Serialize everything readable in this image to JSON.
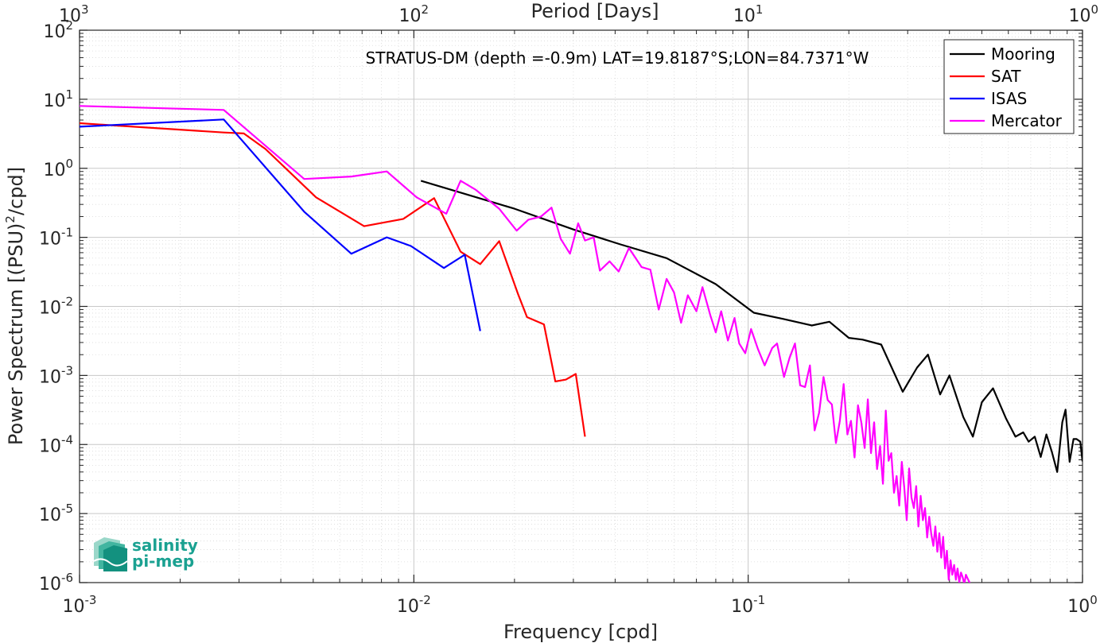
{
  "chart_data": {
    "type": "line",
    "title": "STRATUS-DM (depth =-0.9m) LAT=19.8187°S;LON=84.7371°W",
    "xlabel": "Frequency [cpd]",
    "ylabel": "Power Spectrum [(PSU)²/cpd]",
    "ylabel_parts": {
      "before": "Power Spectrum [(PSU)",
      "sup": "2",
      "after": "/cpd]"
    },
    "xlabel_top": "Period [Days]",
    "x_scale": "log",
    "y_scale": "log",
    "xlim": [
      0.001,
      1
    ],
    "ylim": [
      1e-06,
      100
    ],
    "grid": true,
    "legend_position": "top-right",
    "x_ticks": [
      {
        "value": 0.001,
        "base": "10",
        "exp": "-3"
      },
      {
        "value": 0.01,
        "base": "10",
        "exp": "-2"
      },
      {
        "value": 0.1,
        "base": "10",
        "exp": "-1"
      },
      {
        "value": 1,
        "base": "10",
        "exp": "0"
      }
    ],
    "y_ticks": [
      {
        "value": 100,
        "base": "10",
        "exp": "2"
      },
      {
        "value": 10,
        "base": "10",
        "exp": "1"
      },
      {
        "value": 1,
        "base": "10",
        "exp": "0"
      },
      {
        "value": 0.1,
        "base": "10",
        "exp": "-1"
      },
      {
        "value": 0.01,
        "base": "10",
        "exp": "-2"
      },
      {
        "value": 0.001,
        "base": "10",
        "exp": "-3"
      },
      {
        "value": 0.0001,
        "base": "10",
        "exp": "-4"
      },
      {
        "value": 1e-05,
        "base": "10",
        "exp": "-5"
      },
      {
        "value": 1e-06,
        "base": "10",
        "exp": "-6"
      }
    ],
    "top_ticks": [
      {
        "period": 1000,
        "base": "10",
        "exp": "3"
      },
      {
        "period": 100,
        "base": "10",
        "exp": "2"
      },
      {
        "period": 10,
        "base": "10",
        "exp": "1"
      },
      {
        "period": 1,
        "base": "10",
        "exp": "0"
      }
    ],
    "series": [
      {
        "name": "Mooring",
        "color": "#000000",
        "points": [
          [
            0.0105,
            0.66
          ],
          [
            0.02,
            0.26
          ],
          [
            0.03,
            0.13
          ],
          [
            0.0415,
            0.079
          ],
          [
            0.057,
            0.05
          ],
          [
            0.08,
            0.021
          ],
          [
            0.104,
            0.0081
          ],
          [
            0.127,
            0.0066
          ],
          [
            0.155,
            0.0053
          ],
          [
            0.175,
            0.006
          ],
          [
            0.2,
            0.0035
          ],
          [
            0.22,
            0.0033
          ],
          [
            0.25,
            0.0028
          ],
          [
            0.29,
            0.00058
          ],
          [
            0.32,
            0.0013
          ],
          [
            0.345,
            0.002
          ],
          [
            0.375,
            0.00053
          ],
          [
            0.4,
            0.001
          ],
          [
            0.44,
            0.00025
          ],
          [
            0.47,
            0.00013
          ],
          [
            0.5,
            0.00041
          ],
          [
            0.54,
            0.00065
          ],
          [
            0.59,
            0.00024
          ],
          [
            0.63,
            0.00013
          ],
          [
            0.665,
            0.00015
          ],
          [
            0.69,
            0.00011
          ],
          [
            0.72,
            0.00013
          ],
          [
            0.75,
            6.6e-05
          ],
          [
            0.78,
            0.00014
          ],
          [
            0.81,
            7.8e-05
          ],
          [
            0.84,
            4e-05
          ],
          [
            0.87,
            0.00021
          ],
          [
            0.89,
            0.00032
          ],
          [
            0.915,
            5.6e-05
          ],
          [
            0.94,
            0.00012
          ],
          [
            0.96,
            0.00012
          ],
          [
            0.985,
            0.00011
          ],
          [
            1.0,
            5.7e-05
          ]
        ]
      },
      {
        "name": "SAT",
        "color": "#ff0000",
        "points": [
          [
            0.001,
            4.5
          ],
          [
            0.0027,
            3.3
          ],
          [
            0.0031,
            3.2
          ],
          [
            0.0036,
            1.9
          ],
          [
            0.0051,
            0.38
          ],
          [
            0.0071,
            0.145
          ],
          [
            0.0093,
            0.185
          ],
          [
            0.0115,
            0.37
          ],
          [
            0.0138,
            0.062
          ],
          [
            0.0158,
            0.041
          ],
          [
            0.018,
            0.088
          ],
          [
            0.0205,
            0.015
          ],
          [
            0.0218,
            0.007
          ],
          [
            0.0245,
            0.0055
          ],
          [
            0.0265,
            0.00082
          ],
          [
            0.0285,
            0.00087
          ],
          [
            0.0305,
            0.00105
          ],
          [
            0.0325,
            0.00013
          ]
        ]
      },
      {
        "name": "ISAS",
        "color": "#0000ff",
        "points": [
          [
            0.001,
            4.0
          ],
          [
            0.0027,
            5.1
          ],
          [
            0.0047,
            0.235
          ],
          [
            0.0065,
            0.058
          ],
          [
            0.0083,
            0.1
          ],
          [
            0.0098,
            0.075
          ],
          [
            0.0123,
            0.036
          ],
          [
            0.0142,
            0.056
          ],
          [
            0.0158,
            0.0044
          ]
        ]
      },
      {
        "name": "Mercator",
        "color": "#ff00ff",
        "points": [
          [
            0.001,
            8.0
          ],
          [
            0.0027,
            7.0
          ],
          [
            0.0047,
            0.7
          ],
          [
            0.0065,
            0.76
          ],
          [
            0.0083,
            0.9
          ],
          [
            0.0102,
            0.38
          ],
          [
            0.0125,
            0.22
          ],
          [
            0.0138,
            0.66
          ],
          [
            0.0153,
            0.49
          ],
          [
            0.018,
            0.26
          ],
          [
            0.0203,
            0.125
          ],
          [
            0.022,
            0.18
          ],
          [
            0.024,
            0.2
          ],
          [
            0.0258,
            0.27
          ],
          [
            0.0275,
            0.095
          ],
          [
            0.0293,
            0.058
          ],
          [
            0.031,
            0.16
          ],
          [
            0.0325,
            0.09
          ],
          [
            0.0345,
            0.1
          ],
          [
            0.036,
            0.033
          ],
          [
            0.0385,
            0.045
          ],
          [
            0.041,
            0.032
          ],
          [
            0.044,
            0.07
          ],
          [
            0.048,
            0.037
          ],
          [
            0.051,
            0.034
          ],
          [
            0.054,
            0.009
          ],
          [
            0.057,
            0.025
          ],
          [
            0.06,
            0.016
          ],
          [
            0.063,
            0.0058
          ],
          [
            0.066,
            0.0145
          ],
          [
            0.07,
            0.0085
          ],
          [
            0.073,
            0.019
          ],
          [
            0.077,
            0.0075
          ],
          [
            0.08,
            0.0042
          ],
          [
            0.083,
            0.0085
          ],
          [
            0.087,
            0.0032
          ],
          [
            0.091,
            0.0068
          ],
          [
            0.094,
            0.0029
          ],
          [
            0.098,
            0.0021
          ],
          [
            0.102,
            0.0047
          ],
          [
            0.107,
            0.0024
          ],
          [
            0.112,
            0.0014
          ],
          [
            0.118,
            0.0025
          ],
          [
            0.122,
            0.0029
          ],
          [
            0.128,
            0.00095
          ],
          [
            0.133,
            0.0018
          ],
          [
            0.138,
            0.0029
          ],
          [
            0.143,
            0.00072
          ],
          [
            0.148,
            0.00068
          ],
          [
            0.153,
            0.0014
          ],
          [
            0.158,
            0.00016
          ],
          [
            0.163,
            0.00029
          ],
          [
            0.168,
            0.00095
          ],
          [
            0.173,
            0.00044
          ],
          [
            0.178,
            0.00038
          ],
          [
            0.183,
            0.000105
          ],
          [
            0.188,
            0.00022
          ],
          [
            0.193,
            0.00075
          ],
          [
            0.198,
            0.00014
          ],
          [
            0.203,
            0.00022
          ],
          [
            0.208,
            6.5e-05
          ],
          [
            0.213,
            0.00037
          ],
          [
            0.218,
            0.00021
          ],
          [
            0.223,
            8.9e-05
          ],
          [
            0.228,
            0.00045
          ],
          [
            0.233,
            7.5e-05
          ],
          [
            0.238,
            0.00021
          ],
          [
            0.243,
            4.4e-05
          ],
          [
            0.248,
            9.5e-05
          ],
          [
            0.253,
            2.7e-05
          ],
          [
            0.258,
            0.00031
          ],
          [
            0.263,
            5.8e-05
          ],
          [
            0.268,
            7.5e-05
          ],
          [
            0.273,
            2e-05
          ],
          [
            0.278,
            3.5e-05
          ],
          [
            0.283,
            1.3e-05
          ],
          [
            0.288,
            5.6e-05
          ],
          [
            0.293,
            2.4e-05
          ],
          [
            0.298,
            8e-06
          ],
          [
            0.303,
            4.5e-05
          ],
          [
            0.308,
            1.7e-05
          ],
          [
            0.313,
            1.2e-05
          ],
          [
            0.318,
            2.5e-05
          ],
          [
            0.323,
            6.5e-06
          ],
          [
            0.328,
            1.8e-05
          ],
          [
            0.333,
            8e-06
          ],
          [
            0.338,
            1.2e-05
          ],
          [
            0.343,
            4.5e-06
          ],
          [
            0.348,
            9e-06
          ],
          [
            0.353,
            5e-06
          ],
          [
            0.358,
            3.4e-06
          ],
          [
            0.363,
            6.5e-06
          ],
          [
            0.368,
            2.8e-06
          ],
          [
            0.373,
            5.2e-06
          ],
          [
            0.378,
            2.3e-06
          ],
          [
            0.383,
            4.6e-06
          ],
          [
            0.388,
            1.6e-06
          ],
          [
            0.393,
            2.9e-06
          ],
          [
            0.398,
            1.1e-06
          ],
          [
            0.403,
            2.1e-06
          ],
          [
            0.408,
            1.3e-06
          ],
          [
            0.413,
            1.8e-06
          ],
          [
            0.418,
            1.1e-06
          ],
          [
            0.423,
            1.6e-06
          ],
          [
            0.428,
            1e-06
          ],
          [
            0.433,
            1.4e-06
          ],
          [
            0.438,
            1.2e-06
          ],
          [
            0.443,
            9.5e-07
          ],
          [
            0.448,
            1.3e-06
          ],
          [
            0.455,
            1.1e-06
          ],
          [
            0.462,
            9.5e-07
          ]
        ]
      }
    ]
  },
  "logo": {
    "line1": "salinity",
    "line2": "pi-mep"
  }
}
